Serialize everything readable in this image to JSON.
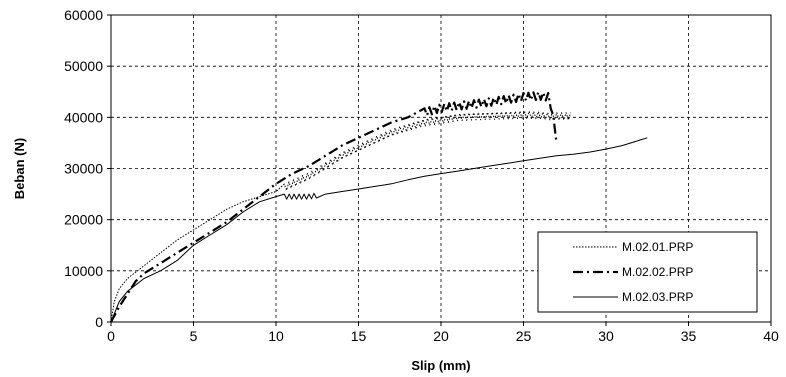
{
  "chart_data": {
    "type": "line",
    "title": "",
    "xlabel": "Slip (mm)",
    "ylabel": "Beban (N)",
    "xlim": [
      0,
      40
    ],
    "ylim": [
      0,
      60000
    ],
    "xticks": [
      0,
      5,
      10,
      15,
      20,
      25,
      30,
      35,
      40
    ],
    "yticks": [
      0,
      10000,
      20000,
      30000,
      40000,
      50000,
      60000
    ],
    "x_tick_labels": [
      "0",
      "5",
      "10",
      "15",
      "20",
      "25",
      "30",
      "35",
      "40"
    ],
    "y_tick_labels": [
      "0",
      "10000",
      "20000",
      "30000",
      "40000",
      "50000",
      "60000"
    ],
    "grid": true,
    "legend_position": "bottom-right",
    "series": [
      {
        "name": "M.02.01.PRP",
        "style": "dotted",
        "points": [
          [
            0,
            0
          ],
          [
            0.2,
            4000
          ],
          [
            0.5,
            6500
          ],
          [
            1,
            8500
          ],
          [
            2,
            11000
          ],
          [
            3,
            13500
          ],
          [
            4,
            16000
          ],
          [
            5,
            18000
          ],
          [
            6,
            20000
          ],
          [
            7,
            22000
          ],
          [
            8,
            23500
          ],
          [
            9,
            24500
          ],
          [
            10,
            25500
          ],
          [
            11,
            27000
          ],
          [
            12,
            28500
          ],
          [
            13,
            30500
          ],
          [
            14,
            32500
          ],
          [
            15,
            34000
          ],
          [
            16,
            35500
          ],
          [
            17,
            37000
          ],
          [
            18,
            38000
          ],
          [
            19,
            39000
          ],
          [
            20,
            39500
          ],
          [
            21,
            40000
          ],
          [
            22,
            40200
          ],
          [
            23,
            40300
          ],
          [
            24,
            40400
          ],
          [
            25,
            40500
          ],
          [
            26,
            40400
          ],
          [
            26.5,
            40200
          ]
        ]
      },
      {
        "name": "M.02.02.PRP",
        "style": "dashdot",
        "points": [
          [
            0,
            0
          ],
          [
            0.5,
            3000
          ],
          [
            1,
            5500
          ],
          [
            1.5,
            8000
          ],
          [
            2,
            9500
          ],
          [
            3,
            11500
          ],
          [
            4,
            13500
          ],
          [
            5,
            15500
          ],
          [
            6,
            17500
          ],
          [
            7,
            19500
          ],
          [
            8,
            22000
          ],
          [
            9,
            24500
          ],
          [
            10,
            27000
          ],
          [
            11,
            29000
          ],
          [
            12,
            30500
          ],
          [
            13,
            32500
          ],
          [
            14,
            34500
          ],
          [
            15,
            36000
          ],
          [
            16,
            37500
          ],
          [
            17,
            39000
          ],
          [
            18,
            40000
          ],
          [
            19,
            41000
          ],
          [
            20,
            41800
          ],
          [
            21,
            42200
          ],
          [
            22,
            42600
          ],
          [
            23,
            43000
          ],
          [
            24,
            43500
          ],
          [
            25,
            44000
          ],
          [
            26,
            44200
          ],
          [
            26.5,
            44000
          ],
          [
            26.7,
            42000
          ],
          [
            27,
            35000
          ]
        ]
      },
      {
        "name": "M.02.03.PRP",
        "style": "solid",
        "points": [
          [
            0,
            0
          ],
          [
            0.5,
            4000
          ],
          [
            1,
            6000
          ],
          [
            2,
            8500
          ],
          [
            3,
            10000
          ],
          [
            4,
            12000
          ],
          [
            5,
            15000
          ],
          [
            6,
            17000
          ],
          [
            7,
            19000
          ],
          [
            8,
            21500
          ],
          [
            9,
            23500
          ],
          [
            10,
            24500
          ],
          [
            11,
            24500
          ],
          [
            12,
            24500
          ],
          [
            13,
            25000
          ],
          [
            14,
            25500
          ],
          [
            15,
            26000
          ],
          [
            16,
            26500
          ],
          [
            17,
            27000
          ],
          [
            18,
            27800
          ],
          [
            19,
            28500
          ],
          [
            20,
            29000
          ],
          [
            21,
            29500
          ],
          [
            22,
            30000
          ],
          [
            23,
            30500
          ],
          [
            24,
            31000
          ],
          [
            25,
            31500
          ],
          [
            26,
            32000
          ],
          [
            27,
            32500
          ],
          [
            28,
            32800
          ],
          [
            29,
            33200
          ],
          [
            30,
            33800
          ],
          [
            31,
            34500
          ],
          [
            32,
            35500
          ],
          [
            32.5,
            36000
          ]
        ]
      }
    ],
    "oscillation": [
      {
        "series": 1,
        "x_from": 19,
        "x_to": 26.8,
        "amp": 1500,
        "step": 0.15
      },
      {
        "series": 0,
        "x_from": 10.5,
        "x_to": 28,
        "amp": 1400,
        "step": 0.14
      },
      {
        "series": 2,
        "x_from": 10.5,
        "x_to": 12.5,
        "amp": 1000,
        "step": 0.15
      }
    ]
  }
}
